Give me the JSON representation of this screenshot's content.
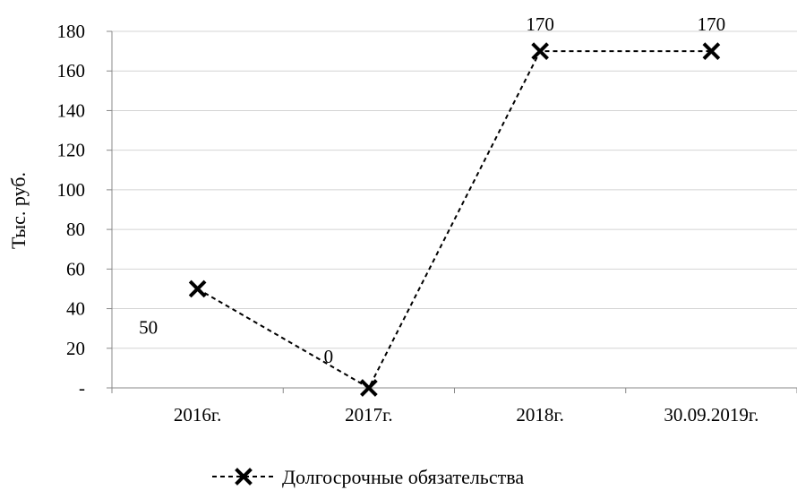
{
  "chart_data": {
    "type": "line",
    "title": "",
    "xlabel": "",
    "ylabel": "Тыс. руб.",
    "categories": [
      "2016г.",
      "2017г.",
      "2018г.",
      "30.09.2019г."
    ],
    "ylim": [
      0,
      180
    ],
    "yticks": [
      {
        "value": 0,
        "label": "-"
      },
      {
        "value": 20,
        "label": "20"
      },
      {
        "value": 40,
        "label": "40"
      },
      {
        "value": 60,
        "label": "60"
      },
      {
        "value": 80,
        "label": "80"
      },
      {
        "value": 100,
        "label": "100"
      },
      {
        "value": 120,
        "label": "120"
      },
      {
        "value": 140,
        "label": "140"
      },
      {
        "value": 160,
        "label": "160"
      },
      {
        "value": 180,
        "label": "180"
      }
    ],
    "grid": true,
    "legend_position": "bottom",
    "series": [
      {
        "name": "Долгосрочные обязательства",
        "values": [
          50,
          0,
          170,
          170
        ],
        "data_labels": [
          "50",
          "0",
          "170",
          "170"
        ],
        "color": "#000000",
        "line_style": "dashed",
        "marker": "x"
      }
    ]
  }
}
